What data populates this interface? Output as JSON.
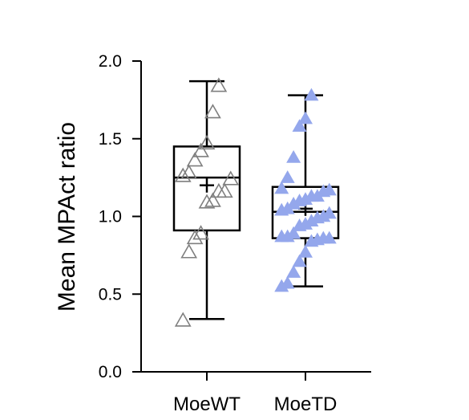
{
  "chart_data": {
    "type": "box",
    "title": "",
    "xlabel": "",
    "ylabel": "Mean MPAct ratio",
    "ylim": [
      0.0,
      2.0
    ],
    "yticks": [
      "0.0",
      "0.5",
      "1.0",
      "1.5",
      "2.0"
    ],
    "grid": false,
    "legend": "none",
    "categories": [
      "MoeWT",
      "MoeTD"
    ],
    "series": [
      {
        "category": "MoeWT",
        "marker": "open-triangle",
        "color": "#7f7f7f",
        "stats": {
          "min": 0.34,
          "q1": 0.91,
          "median": 1.25,
          "q3": 1.45,
          "max": 1.87,
          "mean": 1.2
        },
        "points": [
          0.33,
          0.77,
          0.86,
          0.89,
          1.09,
          1.1,
          1.16,
          1.16,
          1.24,
          1.26,
          1.28,
          1.36,
          1.42,
          1.47,
          1.67,
          1.84
        ]
      },
      {
        "category": "MoeTD",
        "marker": "filled-triangle",
        "color": "#94a7ec",
        "stats": {
          "min": 0.55,
          "q1": 0.86,
          "median": 1.03,
          "q3": 1.19,
          "max": 1.78,
          "mean": 1.05
        },
        "points": [
          0.55,
          0.57,
          0.64,
          0.71,
          0.77,
          0.84,
          0.85,
          0.86,
          0.86,
          0.87,
          0.87,
          0.89,
          0.94,
          0.95,
          0.97,
          0.99,
          1.0,
          1.02,
          1.04,
          1.05,
          1.08,
          1.1,
          1.11,
          1.13,
          1.13,
          1.16,
          1.17,
          1.18,
          1.25,
          1.38,
          1.58,
          1.63,
          1.78
        ]
      }
    ]
  },
  "colors": {
    "axis": "#000000",
    "box_stroke": "#000000"
  }
}
